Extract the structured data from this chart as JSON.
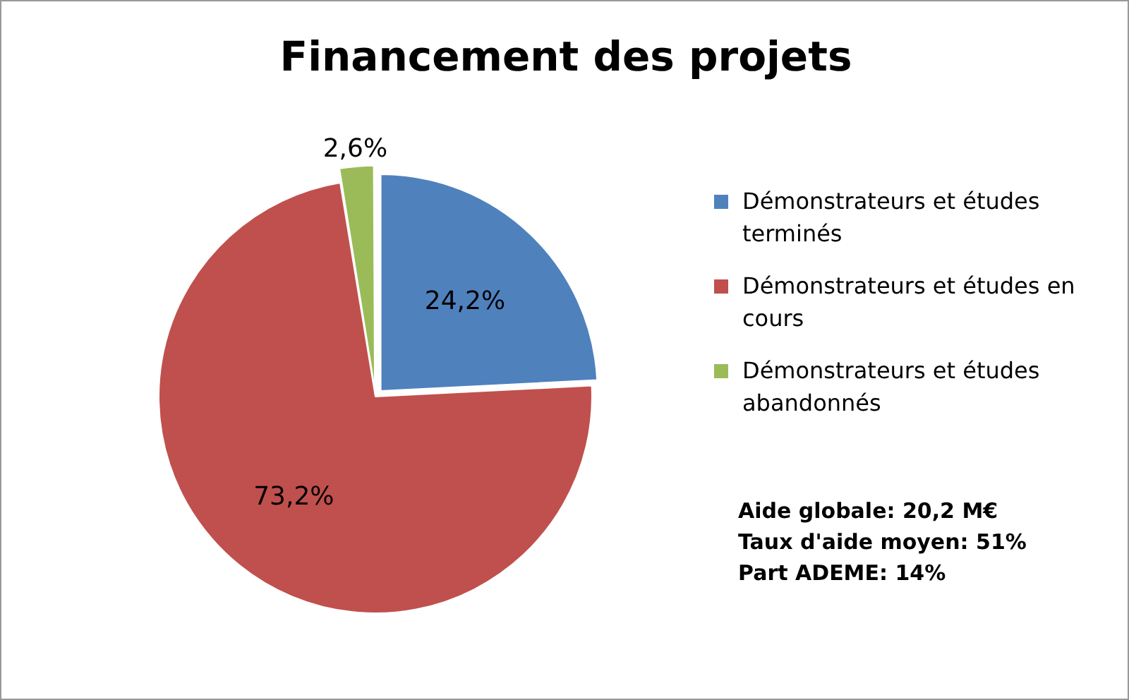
{
  "chart_data": {
    "type": "pie",
    "title": "Financement des projets",
    "categories": [
      "Démonstrateurs et études terminés",
      "Démonstrateurs et études en cours",
      "Démonstrateurs et études abandonnés"
    ],
    "values": [
      24.2,
      73.2,
      2.6
    ],
    "colors": [
      "#4f81bd",
      "#c0504d",
      "#9bbb59"
    ],
    "value_labels": [
      "24,2%",
      "73,2%",
      "2,6%"
    ],
    "legend": "right",
    "annotations": [
      "Aide globale: 20,2 M€",
      "Taux d'aide moyen: 51%",
      "Part ADEME: 14%"
    ]
  }
}
